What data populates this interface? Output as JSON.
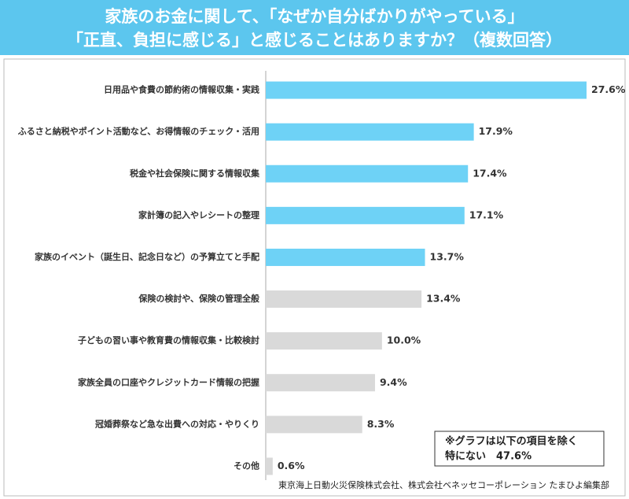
{
  "chart_data": {
    "type": "barh",
    "title": [
      "家族のお金に関して、「なぜか自分ばかりがやっている」",
      "「正直、負担に感じる」と感じることはありますか？（複数回答）"
    ],
    "categories": [
      "日用品や食費の節約術の情報収集・実践",
      "ふるさと納税やポイント活動など、お得情報のチェック・活用",
      "税金や社会保険に関する情報収集",
      "家計簿の記入やレシートの整理",
      "家族のイベント（誕生日、記念日など）の予算立てと手配",
      "保険の検討や、保険の管理全般",
      "子どもの習い事や教育費の情報収集・比較検討",
      "家族全員の口座やクレジットカード情報の把握",
      "冠婚葬祭など急な出費への対応・やりくり",
      "その他"
    ],
    "values": [
      27.6,
      17.9,
      17.4,
      17.1,
      13.7,
      13.4,
      10.0,
      9.4,
      8.3,
      0.6
    ],
    "value_labels": [
      "27.6%",
      "17.9%",
      "17.4%",
      "17.1%",
      "13.7%",
      "13.4%",
      "10.0%",
      "9.4%",
      "8.3%",
      "0.6%"
    ],
    "colors": [
      "#6ed2f6",
      "#6ed2f6",
      "#6ed2f6",
      "#6ed2f6",
      "#6ed2f6",
      "#d9d9d9",
      "#d9d9d9",
      "#d9d9d9",
      "#d9d9d9",
      "#d9d9d9"
    ],
    "note": [
      "※グラフは以下の項目を除く",
      "特にない　47.6%"
    ],
    "source": "東京海上日動火災保険株式会社、株式会社ベネッセコーポレーション たまひよ編集部"
  }
}
